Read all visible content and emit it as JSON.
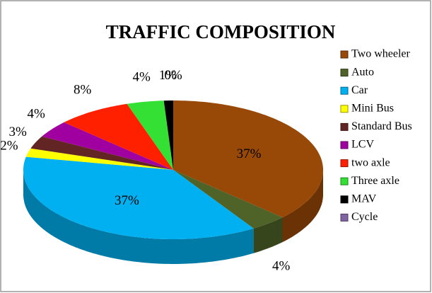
{
  "chart_data": {
    "type": "pie3d",
    "title": "TRAFFIC COMPOSITION",
    "categories": [
      "Two wheeler",
      "Auto",
      "Car",
      "Mini Bus",
      "Standard Bus",
      "LCV",
      "two axle",
      "Three axle",
      "MAV",
      "Cycle"
    ],
    "values": [
      37,
      4,
      37,
      2,
      3,
      4,
      8,
      4,
      1,
      0
    ],
    "value_labels": [
      "37%",
      "4%",
      "37%",
      "2%",
      "3%",
      "4%",
      "8%",
      "4%",
      "1%",
      "0%"
    ],
    "colors": [
      "#984807",
      "#4f6228",
      "#00b0f0",
      "#ffff00",
      "#632523",
      "#a000a0",
      "#ff2000",
      "#33e033",
      "#000000",
      "#8064a2"
    ],
    "legend": "right"
  }
}
